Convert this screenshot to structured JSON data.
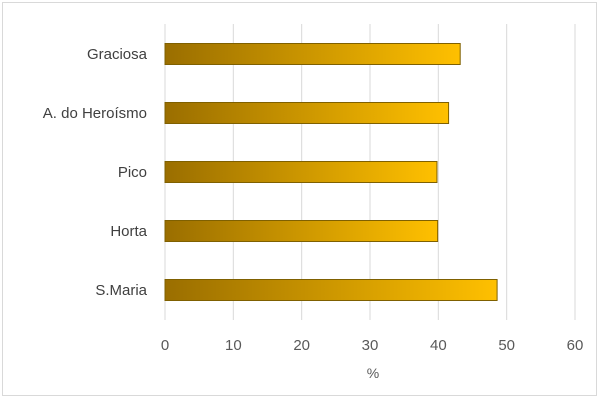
{
  "chart_data": {
    "type": "bar",
    "orientation": "horizontal",
    "categories": [
      "Graciosa",
      "A. do Heroísmo",
      "Pico",
      "Horta",
      "S.Maria"
    ],
    "values": [
      43.2,
      41.5,
      39.8,
      39.9,
      48.6
    ],
    "xlabel": "%",
    "ylabel": "",
    "xlim": [
      0,
      60
    ],
    "xticks": [
      "0",
      "10",
      "20",
      "30",
      "40",
      "50",
      "60"
    ],
    "grid": "vertical",
    "legend": "none",
    "colors": {
      "bar_gradient_start": "#9a6e00",
      "bar_gradient_end": "#ffc000",
      "bar_border": "#7f6000",
      "gridline": "#d9d9d9",
      "text": "#595959"
    }
  }
}
